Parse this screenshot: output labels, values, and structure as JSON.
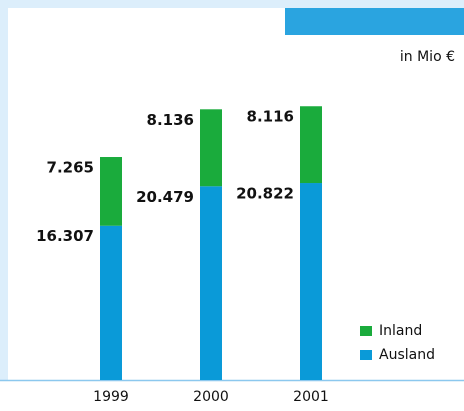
{
  "chart_data": {
    "type": "stacked_bar",
    "unit": "in Mio €",
    "categories": [
      "1999",
      "2000",
      "2001"
    ],
    "series": [
      {
        "name": "Ausland",
        "color": "#0a9ad8",
        "values": [
          16307,
          20479,
          20822
        ],
        "value_labels": [
          "16.307",
          "20.479",
          "20.822"
        ]
      },
      {
        "name": "Inland",
        "color": "#1aab3c",
        "values": [
          7265,
          8136,
          8116
        ],
        "value_labels": [
          "7.265",
          "8.136",
          "8.116"
        ]
      }
    ]
  }
}
